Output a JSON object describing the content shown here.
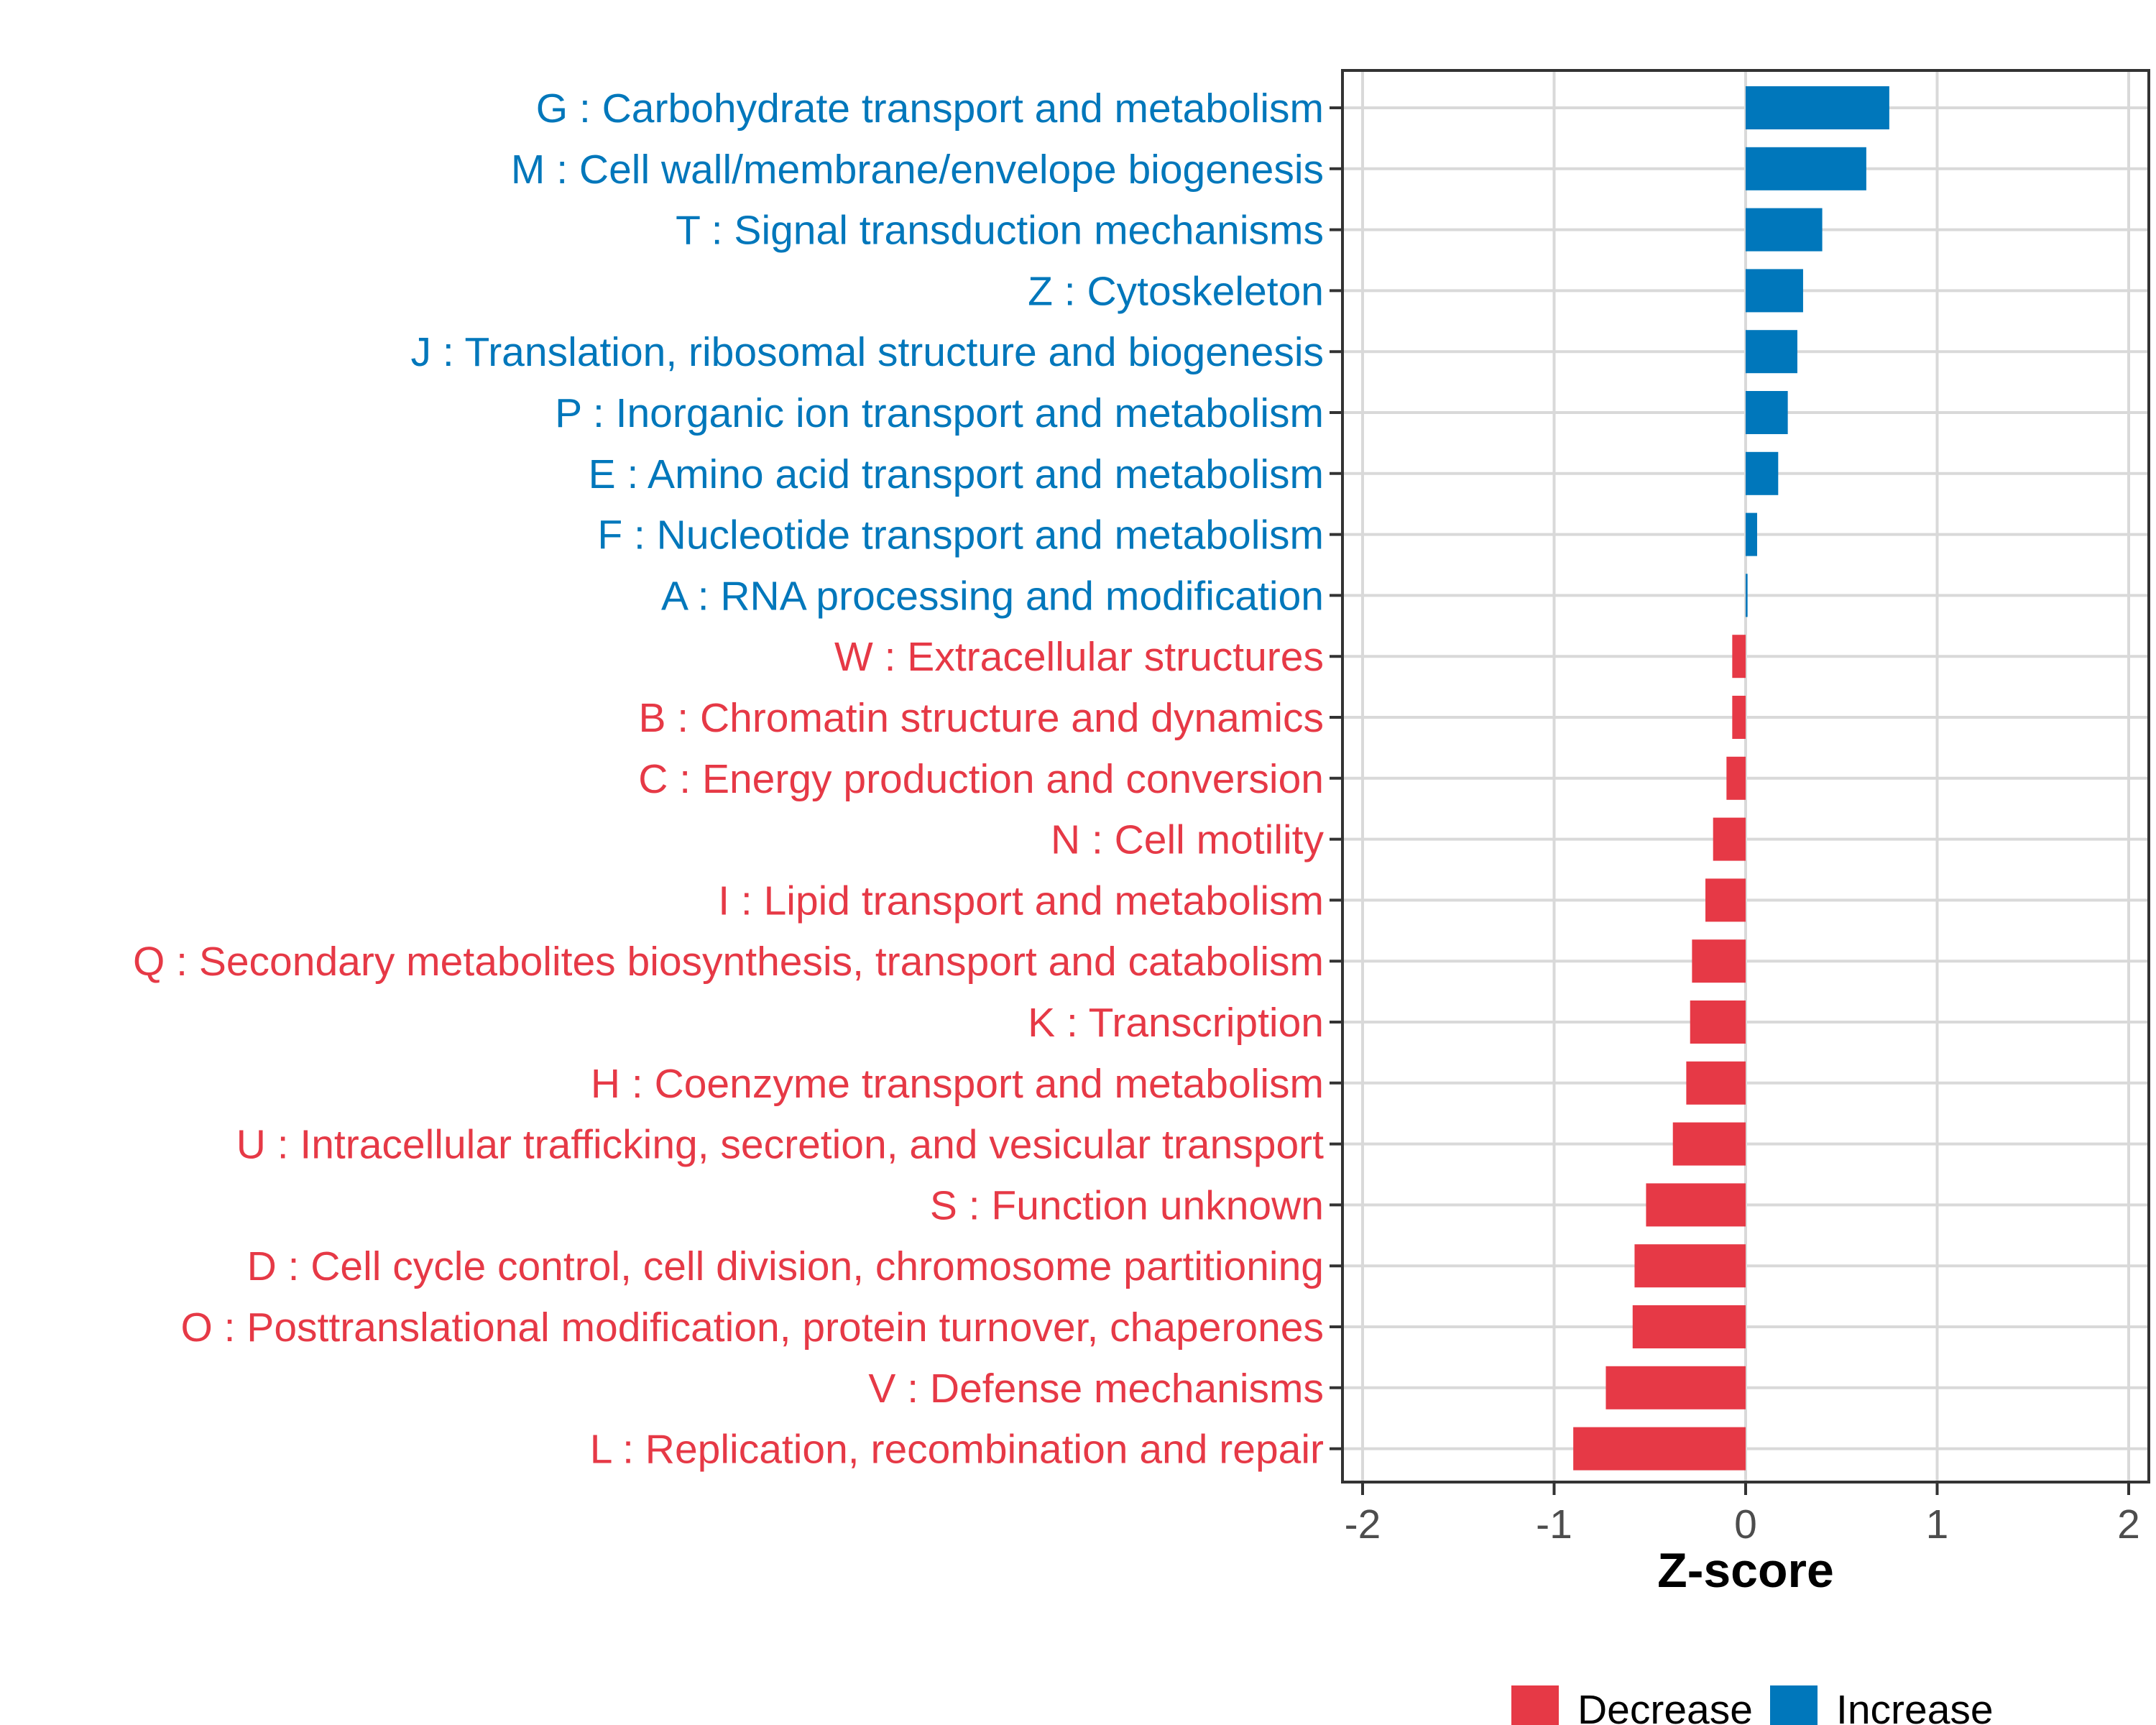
{
  "colors": {
    "increase": "#0077bb",
    "decrease": "#e63946",
    "grid": "#d9d9d9",
    "frame": "#333333"
  },
  "chart_data": {
    "type": "bar",
    "orientation": "horizontal",
    "xlabel": "Z-score",
    "ylabel": "",
    "xlim": [
      -2,
      2
    ],
    "xticks": [
      -2,
      -1,
      0,
      1,
      2
    ],
    "xtick_labels": [
      "-2",
      "-1",
      "0",
      "1",
      "2"
    ],
    "grid": true,
    "legend": {
      "position": "bottom",
      "entries": [
        {
          "label": "Decrease",
          "group": "decrease"
        },
        {
          "label": "Increase",
          "group": "increase"
        }
      ]
    },
    "categories": [
      {
        "label": "G : Carbohydrate transport and metabolism",
        "value": 0.75,
        "group": "increase"
      },
      {
        "label": "M : Cell wall/membrane/envelope biogenesis",
        "value": 0.63,
        "group": "increase"
      },
      {
        "label": "T : Signal transduction mechanisms",
        "value": 0.4,
        "group": "increase"
      },
      {
        "label": "Z : Cytoskeleton",
        "value": 0.3,
        "group": "increase"
      },
      {
        "label": "J : Translation, ribosomal structure and biogenesis",
        "value": 0.27,
        "group": "increase"
      },
      {
        "label": "P : Inorganic ion transport and metabolism",
        "value": 0.22,
        "group": "increase"
      },
      {
        "label": "E : Amino acid transport and metabolism",
        "value": 0.17,
        "group": "increase"
      },
      {
        "label": "F : Nucleotide transport and metabolism",
        "value": 0.06,
        "group": "increase"
      },
      {
        "label": "A : RNA processing and modification",
        "value": 0.01,
        "group": "increase"
      },
      {
        "label": "W : Extracellular structures",
        "value": -0.07,
        "group": "decrease"
      },
      {
        "label": "B : Chromatin structure and dynamics",
        "value": -0.07,
        "group": "decrease"
      },
      {
        "label": "C : Energy production and conversion",
        "value": -0.1,
        "group": "decrease"
      },
      {
        "label": "N : Cell motility",
        "value": -0.17,
        "group": "decrease"
      },
      {
        "label": "I : Lipid transport and metabolism",
        "value": -0.21,
        "group": "decrease"
      },
      {
        "label": "Q : Secondary metabolites biosynthesis, transport and catabolism",
        "value": -0.28,
        "group": "decrease"
      },
      {
        "label": "K : Transcription",
        "value": -0.29,
        "group": "decrease"
      },
      {
        "label": "H : Coenzyme transport and metabolism",
        "value": -0.31,
        "group": "decrease"
      },
      {
        "label": "U : Intracellular trafficking, secretion, and vesicular transport",
        "value": -0.38,
        "group": "decrease"
      },
      {
        "label": "S : Function unknown",
        "value": -0.52,
        "group": "decrease"
      },
      {
        "label": "D : Cell cycle control, cell division, chromosome partitioning",
        "value": -0.58,
        "group": "decrease"
      },
      {
        "label": "O : Posttranslational modification, protein turnover, chaperones",
        "value": -0.59,
        "group": "decrease"
      },
      {
        "label": "V : Defense mechanisms",
        "value": -0.73,
        "group": "decrease"
      },
      {
        "label": "L : Replication, recombination and repair",
        "value": -0.9,
        "group": "decrease"
      }
    ]
  }
}
